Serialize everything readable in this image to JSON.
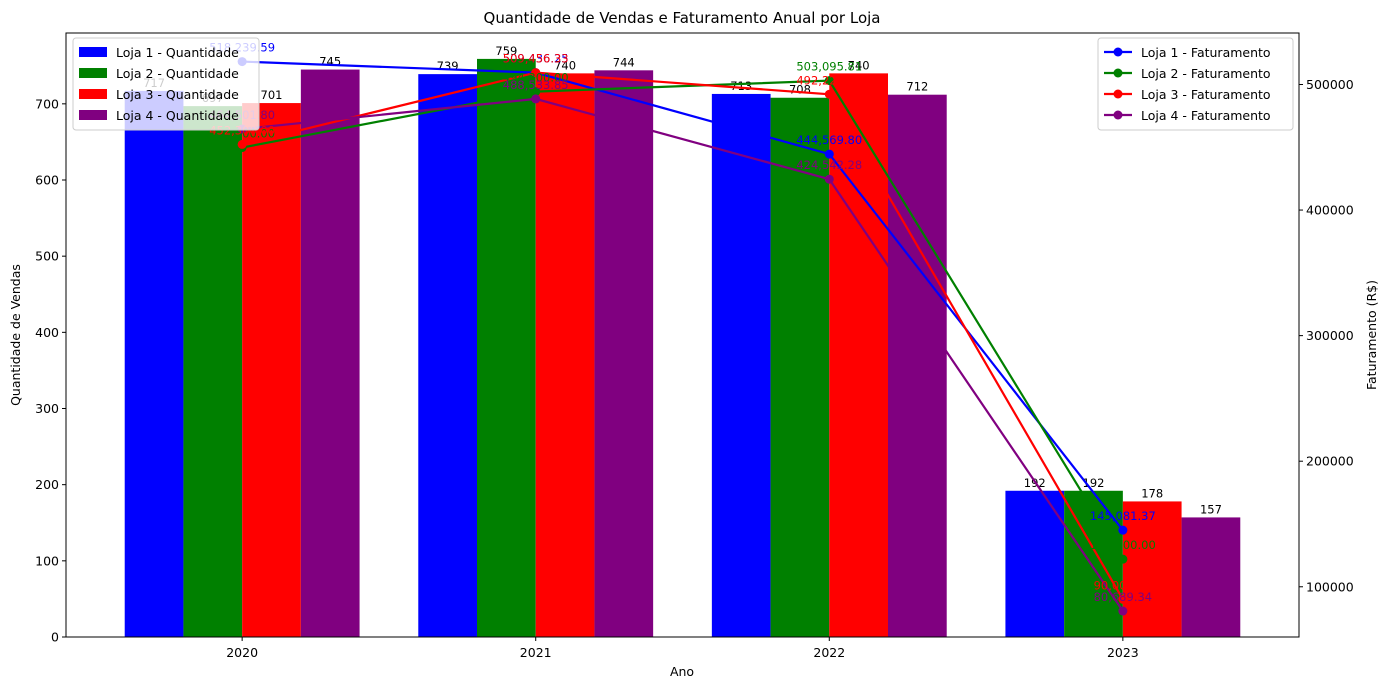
{
  "chart_data": {
    "type": "bar",
    "title": "Quantidade de Vendas e Faturamento Anual por Loja",
    "xlabel": "Ano",
    "ylabel": "Quantidade de Vendas",
    "y2label": "Faturamento (R$)",
    "categories": [
      "2020",
      "2021",
      "2022",
      "2023"
    ],
    "ylim": [
      0,
      793
    ],
    "y2lim": [
      60000,
      541000
    ],
    "yticks": [
      0,
      100,
      200,
      300,
      400,
      500,
      600,
      700
    ],
    "y2ticks": [
      100000,
      200000,
      300000,
      400000,
      500000
    ],
    "y2tick_labels": [
      "100000",
      "200000",
      "300000",
      "400000",
      "500000"
    ],
    "grid": false,
    "bar_series": [
      {
        "name": "Loja 1 - Quantidade",
        "color": "#0000ff",
        "values": [
          717,
          739,
          713,
          192
        ],
        "labels": [
          "717",
          "739",
          "713",
          "192"
        ]
      },
      {
        "name": "Loja 2 - Quantidade",
        "color": "#008000",
        "values": [
          697,
          759,
          708,
          192
        ],
        "labels": [
          "697",
          "759",
          "708",
          "192"
        ]
      },
      {
        "name": "Loja 3 - Quantidade",
        "color": "#ff0000",
        "values": [
          701,
          740,
          740,
          178
        ],
        "labels": [
          "701",
          "740",
          "740",
          "178"
        ]
      },
      {
        "name": "Loja 4 - Quantidade",
        "color": "#800080",
        "values": [
          745,
          744,
          712,
          157
        ],
        "labels": [
          "745",
          "744",
          "712",
          "157"
        ]
      }
    ],
    "line_series": [
      {
        "name": "Loja 1 - Faturamento",
        "color": "#0000ff",
        "values": [
          518239.59,
          509436.25,
          444569.8,
          145081.37
        ],
        "labels": [
          "518,239.59",
          "509,436.25",
          "444,569.80",
          "145,081.37"
        ]
      },
      {
        "name": "Loja 2 - Faturamento",
        "color": "#008000",
        "values": [
          449800.0,
          494300.0,
          503095.81,
          122000.0
        ],
        "labels": [
          "449,800.00",
          "494,300.00",
          "503,095.81",
          "122,000.00"
        ]
      },
      {
        "name": "Loja 3 - Faturamento",
        "color": "#ff0000",
        "values": [
          452300.0,
          509456.33,
          492221.59,
          90000.0
        ],
        "labels": [
          "452,300.00",
          "509,456.33",
          "492,221.59",
          "90,000.00"
        ]
      },
      {
        "name": "Loja 4 - Faturamento",
        "color": "#800080",
        "values": [
          464501.8,
          488533.85,
          424542.28,
          80689.34
        ],
        "labels": [
          "464,501.80",
          "488,533.85",
          "424,542.28",
          "80,689.34"
        ]
      }
    ],
    "legend_bars_position": "top-left",
    "legend_lines_position": "top-right"
  }
}
